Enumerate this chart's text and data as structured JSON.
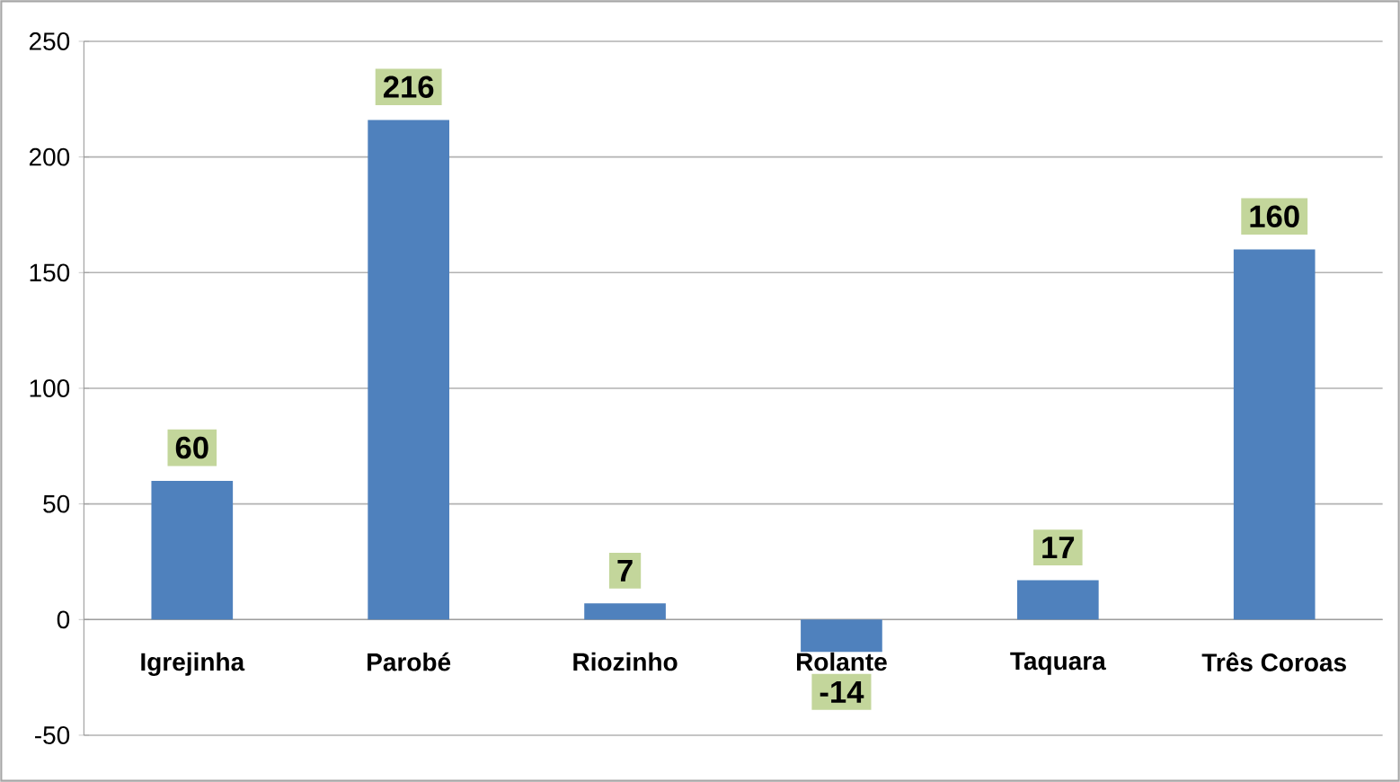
{
  "chart_data": {
    "type": "bar",
    "categories": [
      "Igrejinha",
      "Parobé",
      "Riozinho",
      "Rolante",
      "Taquara",
      "Três Coroas"
    ],
    "values": [
      60,
      216,
      7,
      -14,
      17,
      160
    ],
    "color": "#4f81bd",
    "ylim": [
      -50,
      250
    ],
    "yticks": [
      -50,
      0,
      50,
      100,
      150,
      200,
      250
    ],
    "grid": "y",
    "data_labels": true
  }
}
